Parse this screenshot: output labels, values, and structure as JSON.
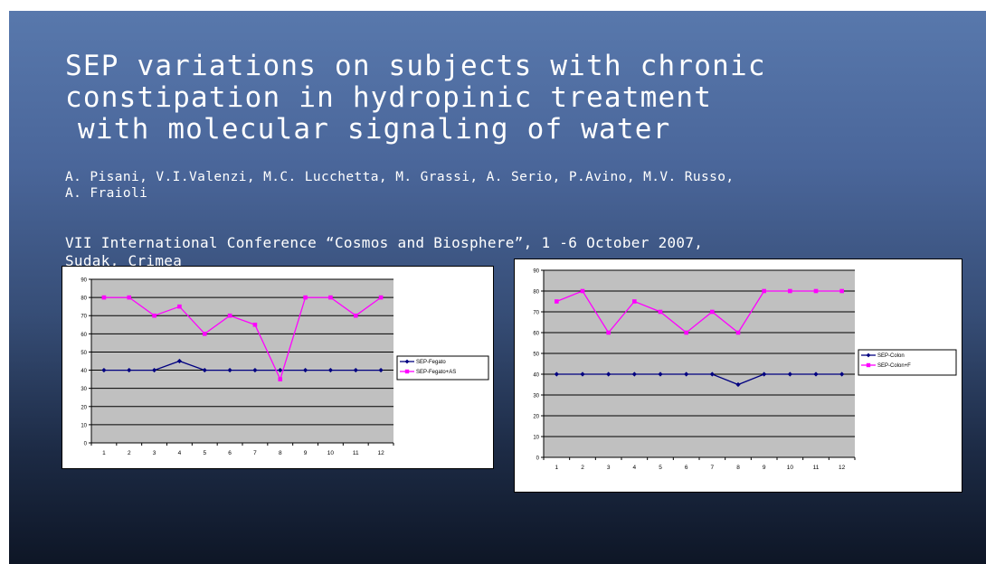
{
  "slide": {
    "title_lines": [
      "SEP variations on subjects with chronic",
      "constipation in hydropinic treatment",
      "with molecular signaling of water"
    ],
    "authors_lines": [
      "A. Pisani, V.I.Valenzi, M.C. Lucchetta, M. Grassi, A. Serio, P.Avino, M.V. Russo,",
      "A. Fraioli"
    ],
    "conference_lines": [
      "VII International Conference “Cosmos and Biosphere”, 1  -6 October 2007,",
      "Sudak, Crimea"
    ]
  },
  "chart_data": [
    {
      "type": "line",
      "x": [
        1,
        2,
        3,
        4,
        5,
        6,
        7,
        8,
        9,
        10,
        11,
        12
      ],
      "ylim": [
        0,
        90
      ],
      "yticks": [
        0,
        10,
        20,
        30,
        40,
        50,
        60,
        70,
        80,
        90
      ],
      "grid": true,
      "legend": "right",
      "series": [
        {
          "name": "SEP-Fegato",
          "values": [
            40,
            40,
            40,
            45,
            40,
            40,
            40,
            40,
            40,
            40,
            40,
            40
          ],
          "color": "#000080",
          "marker": "diamond"
        },
        {
          "name": "SEP-Fegato+AS",
          "values": [
            80,
            80,
            70,
            75,
            60,
            70,
            65,
            35,
            80,
            80,
            70,
            80
          ],
          "color": "#ff00ff",
          "marker": "square"
        }
      ]
    },
    {
      "type": "line",
      "x": [
        1,
        2,
        3,
        4,
        5,
        6,
        7,
        8,
        9,
        10,
        11,
        12
      ],
      "ylim": [
        0,
        90
      ],
      "yticks": [
        0,
        10,
        20,
        30,
        40,
        50,
        60,
        70,
        80,
        90
      ],
      "grid": true,
      "legend": "right",
      "series": [
        {
          "name": "SEP-Colon",
          "values": [
            40,
            40,
            40,
            40,
            40,
            40,
            40,
            35,
            40,
            40,
            40,
            40
          ],
          "color": "#000080",
          "marker": "diamond"
        },
        {
          "name": "SEP-Colon+F",
          "values": [
            75,
            80,
            60,
            75,
            70,
            60,
            70,
            60,
            80,
            80,
            80,
            80
          ],
          "color": "#ff00ff",
          "marker": "square"
        }
      ]
    }
  ]
}
